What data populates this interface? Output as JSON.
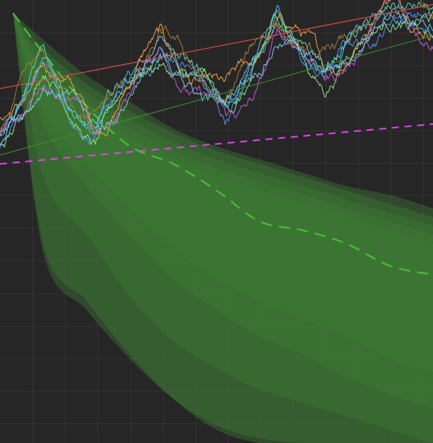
{
  "chart_data": {
    "type": "area",
    "title": "",
    "xlabel": "",
    "ylabel": "",
    "xlim": [
      0,
      100
    ],
    "ylim": [
      0,
      100
    ],
    "grid": true,
    "colors": {
      "background": "#262626",
      "grid": "#333333",
      "band": "#3f7a35",
      "median": "#48b935",
      "channel_upper": "#d94a44",
      "channel_lower": "#3e8f32",
      "support": "#e040e8"
    },
    "fan_bands": [
      {
        "name": "",
        "x": [
          3,
          10,
          20,
          30,
          40,
          50,
          60,
          70,
          80,
          90,
          100
        ],
        "lower": [
          97,
          45,
          32,
          20,
          10,
          3,
          0,
          0,
          0,
          0,
          0
        ],
        "upper": [
          97,
          91,
          83,
          77,
          71,
          67,
          64,
          61,
          58,
          56,
          53
        ]
      },
      {
        "name": "",
        "x": [
          3,
          10,
          20,
          30,
          40,
          50,
          60,
          70,
          80,
          90,
          100
        ],
        "lower": [
          97,
          43,
          30,
          19,
          10,
          4,
          1,
          0,
          0,
          0,
          0
        ],
        "upper": [
          97,
          89,
          81,
          75,
          70,
          66,
          63,
          60,
          57,
          54,
          51
        ]
      },
      {
        "name": "",
        "x": [
          3,
          10,
          20,
          30,
          40,
          50,
          60,
          70,
          80,
          90,
          100
        ],
        "lower": [
          97,
          60,
          47,
          33,
          23,
          17,
          12,
          9,
          6,
          3,
          0
        ],
        "upper": [
          97,
          87,
          79,
          73,
          68,
          64,
          61,
          58,
          55,
          52,
          49
        ]
      },
      {
        "name": "",
        "x": [
          3,
          10,
          20,
          30,
          40,
          50,
          60,
          70,
          80,
          90,
          100
        ],
        "lower": [
          97,
          72,
          58,
          47,
          37,
          30,
          24,
          20,
          15,
          11,
          8
        ],
        "upper": [
          97,
          85,
          77,
          71,
          66,
          62,
          59,
          56,
          53,
          50,
          47
        ]
      },
      {
        "name": "",
        "x": [
          3,
          10,
          20,
          30,
          40,
          50,
          60,
          70,
          80,
          90,
          100
        ],
        "lower": [
          97,
          75,
          63,
          53,
          44,
          37,
          32,
          28,
          24,
          19,
          16
        ],
        "upper": [
          97,
          83,
          75,
          69,
          64,
          60,
          57,
          54,
          51,
          48,
          45
        ]
      }
    ],
    "median": {
      "name": "",
      "x": [
        3,
        10,
        20,
        30,
        40,
        50,
        60,
        70,
        80,
        90,
        100
      ],
      "y": [
        97,
        88,
        76,
        67,
        63,
        57,
        50,
        48,
        45,
        40,
        38
      ]
    },
    "channel_upper": {
      "x": [
        0,
        100
      ],
      "y": [
        80,
        99
      ]
    },
    "channel_lower": {
      "x": [
        0,
        100
      ],
      "y": [
        65,
        92
      ]
    },
    "support": {
      "x": [
        0,
        100
      ],
      "y": [
        63,
        72
      ]
    },
    "series": [
      {
        "name": "",
        "color": "#4fc3f7"
      },
      {
        "name": "",
        "color": "#f4a442"
      },
      {
        "name": "",
        "color": "#5b8def"
      },
      {
        "name": "",
        "color": "#8fe08a"
      },
      {
        "name": "",
        "color": "#c15cd6"
      },
      {
        "name": "",
        "color": "#59d8b8"
      },
      {
        "name": "",
        "color": "#a67c3a"
      },
      {
        "name": "",
        "color": "#7ec8e3"
      }
    ],
    "series_trend": {
      "x": [
        0,
        10,
        22,
        37,
        52,
        64,
        75,
        85,
        91,
        100
      ],
      "y": [
        69,
        84,
        70,
        89,
        75,
        94,
        83,
        92,
        99,
        94
      ]
    }
  }
}
